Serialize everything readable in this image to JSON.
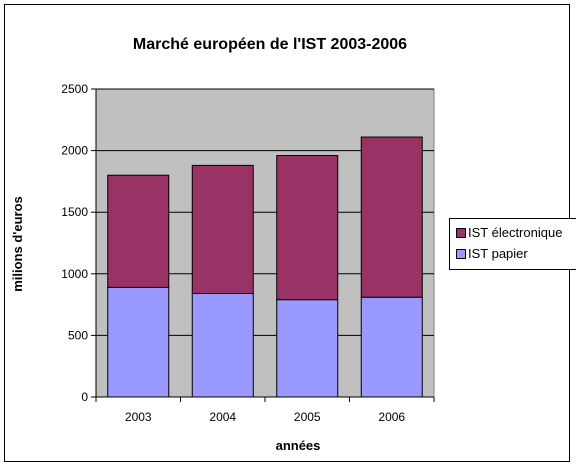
{
  "chart_data": {
    "type": "bar",
    "stacked": true,
    "title": "Marché européen de l'IST 2003-2006",
    "xlabel": "années",
    "ylabel": "milions d'euros",
    "categories": [
      "2003",
      "2004",
      "2005",
      "2006"
    ],
    "ylim": [
      0,
      2500
    ],
    "yticks": [
      0,
      500,
      1000,
      1500,
      2000,
      2500
    ],
    "grid": true,
    "legend_position": "right",
    "series": [
      {
        "name": "IST papier",
        "color": "#9999ff",
        "values": [
          890,
          840,
          790,
          810
        ]
      },
      {
        "name": "IST électronique",
        "color": "#993366",
        "values": [
          910,
          1040,
          1170,
          1300
        ]
      }
    ],
    "legend_order": [
      "IST électronique",
      "IST papier"
    ],
    "plot_background": "#c0c0c0"
  }
}
